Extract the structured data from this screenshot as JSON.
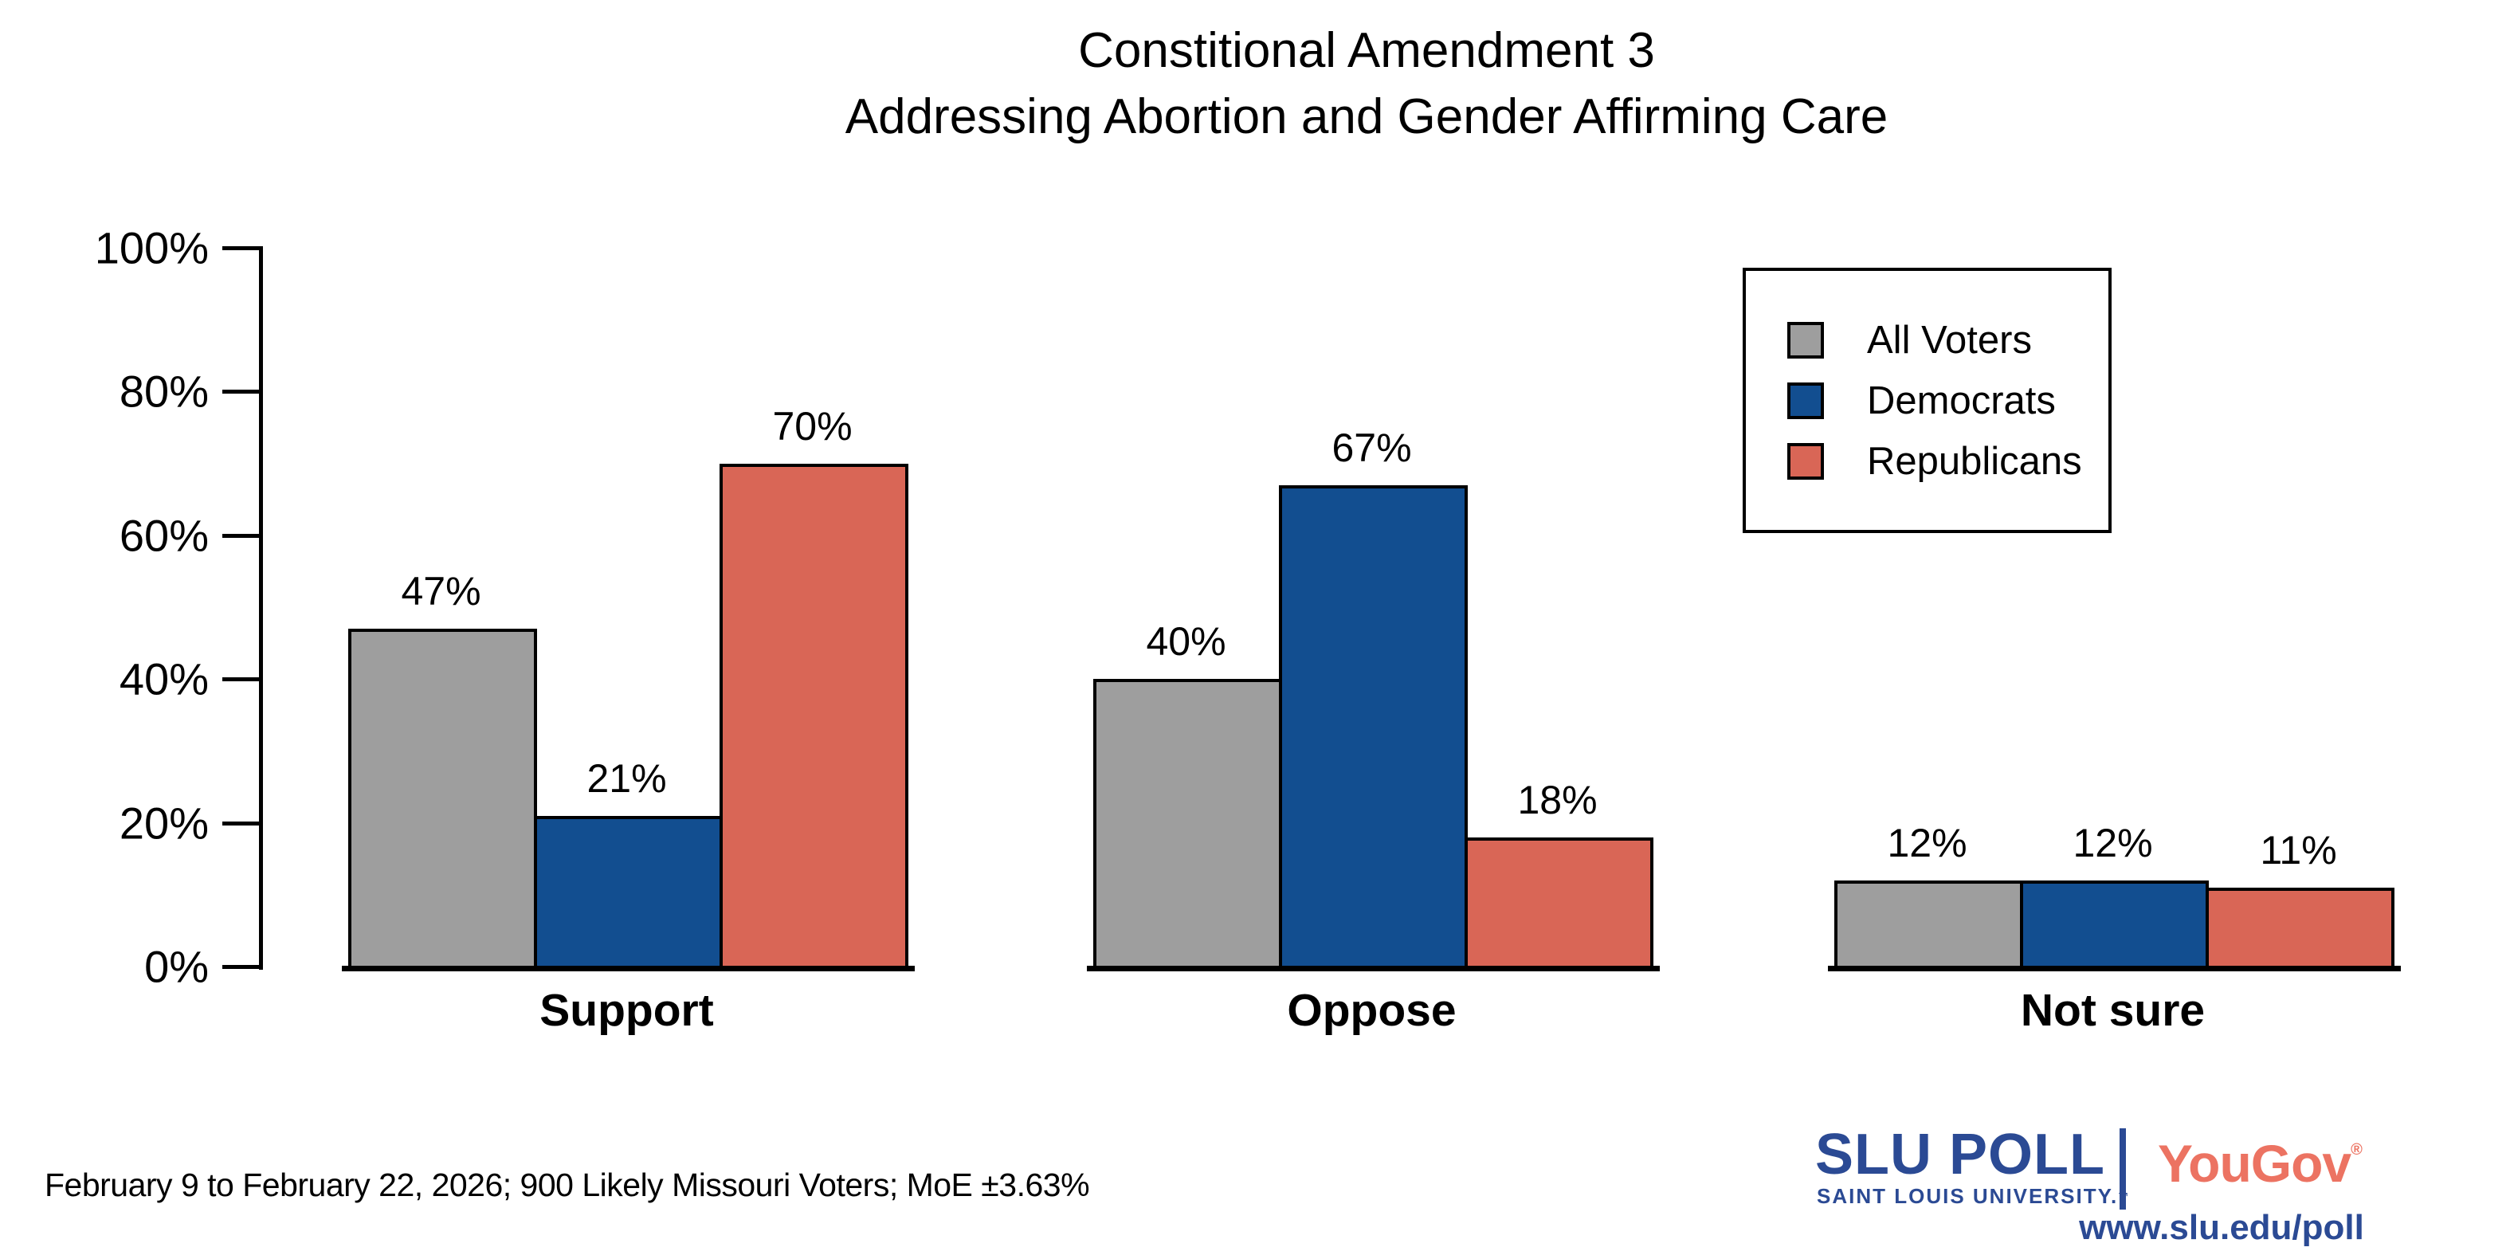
{
  "chart_data": {
    "type": "bar",
    "title_lines": [
      "Constitional Amendment 3",
      "Addressing Abortion and Gender Affirming Care"
    ],
    "categories": [
      "Support",
      "Oppose",
      "Not sure"
    ],
    "series": [
      {
        "name": "All Voters",
        "color": "#9e9e9e",
        "values": [
          47,
          40,
          12
        ]
      },
      {
        "name": "Democrats",
        "color": "#124e90",
        "values": [
          21,
          67,
          12
        ]
      },
      {
        "name": "Republicans",
        "color": "#d96656",
        "values": [
          70,
          18,
          11
        ]
      }
    ],
    "value_label_format": "percent",
    "xlabel": "",
    "ylabel": "",
    "y_ticks": [
      "0%",
      "20%",
      "40%",
      "60%",
      "80%",
      "100%"
    ],
    "ylim": [
      0,
      100
    ],
    "grid": false,
    "legend_position": "top-right"
  },
  "footer": {
    "text": "February 9 to February 22, 2026; 900 Likely Missouri Voters; MoE ±3.63%"
  },
  "logo": {
    "slu": "SLU",
    "poll": " POLL",
    "tagline": "SAINT LOUIS UNIVERSITY.",
    "trademark": "™",
    "yougov": "YouGov",
    "registered": "®",
    "url": "www.slu.edu/poll",
    "slu_blue": "#2b4a94",
    "yougov_coral": "#ec7362"
  }
}
